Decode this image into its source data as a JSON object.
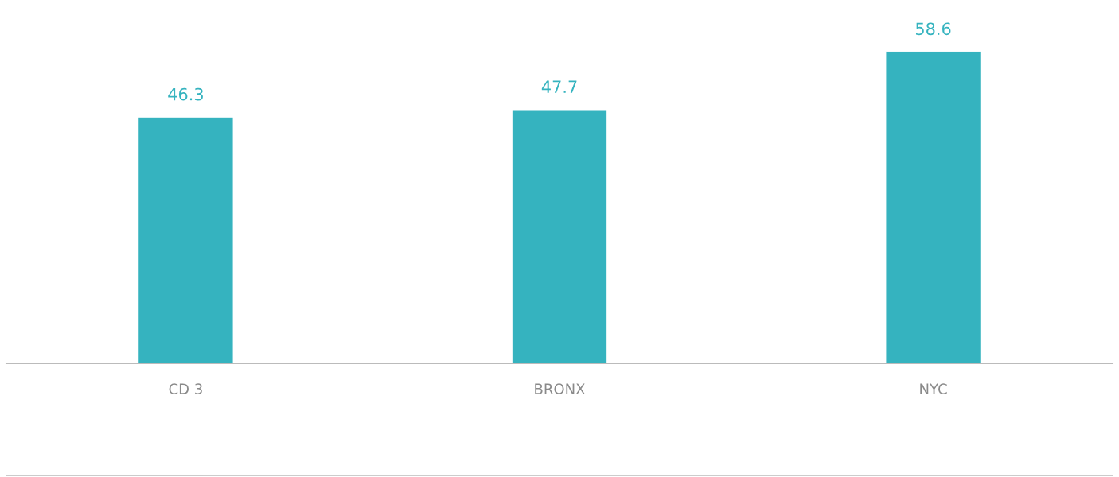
{
  "chart_data": {
    "type": "bar",
    "categories": [
      "CD 3",
      "BRONX",
      "NYC"
    ],
    "values": [
      46.3,
      47.7,
      58.6
    ],
    "color": "#35b3bf",
    "data_labels": true,
    "grid": false,
    "legend": false
  }
}
